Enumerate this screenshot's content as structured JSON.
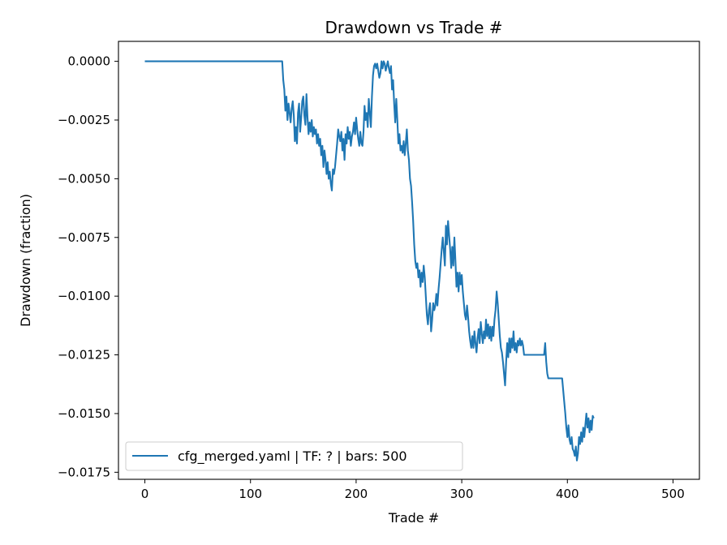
{
  "chart_data": {
    "type": "line",
    "title": "Drawdown vs Trade #",
    "xlabel": "Trade #",
    "ylabel": "Drawdown (fraction)",
    "xlim": [
      -25,
      525
    ],
    "ylim": [
      -0.0178,
      0.00085
    ],
    "xticks": [
      0,
      100,
      200,
      300,
      400,
      500
    ],
    "xtick_labels": [
      "0",
      "100",
      "200",
      "300",
      "400",
      "500"
    ],
    "yticks": [
      0.0,
      -0.0025,
      -0.005,
      -0.0075,
      -0.01,
      -0.0125,
      -0.015,
      -0.0175
    ],
    "ytick_labels": [
      "0.0000",
      "−0.0025",
      "−0.0050",
      "−0.0075",
      "−0.0100",
      "−0.0125",
      "−0.0150",
      "−0.0175"
    ],
    "grid": false,
    "legend_position": "lower-left",
    "series": [
      {
        "name": "cfg_merged.yaml | TF: ? | bars: 500",
        "color": "#1f77b4",
        "points": [
          [
            0,
            0
          ],
          [
            130,
            0
          ],
          [
            131,
            -0.0008
          ],
          [
            132,
            -0.0012
          ],
          [
            133,
            -0.0021
          ],
          [
            134,
            -0.0015
          ],
          [
            135,
            -0.0025
          ],
          [
            136,
            -0.0018
          ],
          [
            137,
            -0.0022
          ],
          [
            138,
            -0.0026
          ],
          [
            139,
            -0.002
          ],
          [
            140,
            -0.0017
          ],
          [
            141,
            -0.0023
          ],
          [
            142,
            -0.0034
          ],
          [
            143,
            -0.0028
          ],
          [
            144,
            -0.0035
          ],
          [
            145,
            -0.0022
          ],
          [
            146,
            -0.0018
          ],
          [
            147,
            -0.003
          ],
          [
            148,
            -0.0024
          ],
          [
            149,
            -0.0017
          ],
          [
            150,
            -0.0015
          ],
          [
            151,
            -0.0023
          ],
          [
            152,
            -0.0027
          ],
          [
            153,
            -0.0014
          ],
          [
            154,
            -0.0024
          ],
          [
            155,
            -0.0031
          ],
          [
            156,
            -0.0026
          ],
          [
            157,
            -0.003
          ],
          [
            158,
            -0.0025
          ],
          [
            159,
            -0.0032
          ],
          [
            160,
            -0.0028
          ],
          [
            161,
            -0.0031
          ],
          [
            162,
            -0.0029
          ],
          [
            163,
            -0.0035
          ],
          [
            164,
            -0.0031
          ],
          [
            165,
            -0.0036
          ],
          [
            166,
            -0.0033
          ],
          [
            167,
            -0.004
          ],
          [
            168,
            -0.0036
          ],
          [
            169,
            -0.0045
          ],
          [
            170,
            -0.0038
          ],
          [
            171,
            -0.0042
          ],
          [
            172,
            -0.0048
          ],
          [
            173,
            -0.0043
          ],
          [
            174,
            -0.005
          ],
          [
            175,
            -0.0047
          ],
          [
            176,
            -0.0052
          ],
          [
            177,
            -0.0055
          ],
          [
            178,
            -0.0046
          ],
          [
            179,
            -0.0048
          ],
          [
            180,
            -0.0045
          ],
          [
            181,
            -0.004
          ],
          [
            182,
            -0.0035
          ],
          [
            183,
            -0.0029
          ],
          [
            184,
            -0.0032
          ],
          [
            185,
            -0.0034
          ],
          [
            186,
            -0.003
          ],
          [
            187,
            -0.0038
          ],
          [
            188,
            -0.0033
          ],
          [
            189,
            -0.0042
          ],
          [
            190,
            -0.0031
          ],
          [
            191,
            -0.0035
          ],
          [
            192,
            -0.0028
          ],
          [
            193,
            -0.0033
          ],
          [
            194,
            -0.003
          ],
          [
            195,
            -0.0036
          ],
          [
            196,
            -0.0032
          ],
          [
            197,
            -0.003
          ],
          [
            198,
            -0.0026
          ],
          [
            199,
            -0.0031
          ],
          [
            200,
            -0.0024
          ],
          [
            201,
            -0.0029
          ],
          [
            202,
            -0.0033
          ],
          [
            203,
            -0.0036
          ],
          [
            204,
            -0.003
          ],
          [
            205,
            -0.0035
          ],
          [
            206,
            -0.0036
          ],
          [
            207,
            -0.003
          ],
          [
            208,
            -0.0019
          ],
          [
            209,
            -0.0025
          ],
          [
            210,
            -0.0022
          ],
          [
            211,
            -0.0028
          ],
          [
            212,
            -0.0016
          ],
          [
            213,
            -0.0022
          ],
          [
            214,
            -0.0028
          ],
          [
            215,
            -0.0015
          ],
          [
            216,
            -0.0006
          ],
          [
            217,
            -0.0002
          ],
          [
            218,
            -0.0001
          ],
          [
            219,
            -0.0003
          ],
          [
            220,
            -0.0001
          ],
          [
            221,
            -0.0004
          ],
          [
            222,
            -0.0007
          ],
          [
            223,
            -0.0005
          ],
          [
            224,
            0
          ],
          [
            225,
            -0.0003
          ],
          [
            226,
            0
          ],
          [
            227,
            -0.0001
          ],
          [
            228,
            -0.0004
          ],
          [
            229,
            -0.0002
          ],
          [
            230,
            0
          ],
          [
            231,
            -0.0003
          ],
          [
            232,
            -0.0005
          ],
          [
            233,
            -0.0002
          ],
          [
            234,
            -0.0012
          ],
          [
            235,
            -0.0008
          ],
          [
            236,
            -0.0018
          ],
          [
            237,
            -0.0026
          ],
          [
            238,
            -0.0016
          ],
          [
            239,
            -0.0025
          ],
          [
            240,
            -0.0035
          ],
          [
            241,
            -0.0031
          ],
          [
            242,
            -0.0038
          ],
          [
            243,
            -0.0036
          ],
          [
            244,
            -0.0039
          ],
          [
            245,
            -0.0034
          ],
          [
            246,
            -0.004
          ],
          [
            247,
            -0.0035
          ],
          [
            248,
            -0.0029
          ],
          [
            249,
            -0.0038
          ],
          [
            250,
            -0.0042
          ],
          [
            251,
            -0.005
          ],
          [
            252,
            -0.0053
          ],
          [
            253,
            -0.006
          ],
          [
            254,
            -0.0068
          ],
          [
            255,
            -0.0078
          ],
          [
            256,
            -0.0085
          ],
          [
            257,
            -0.0088
          ],
          [
            258,
            -0.0086
          ],
          [
            259,
            -0.0092
          ],
          [
            260,
            -0.0089
          ],
          [
            261,
            -0.0096
          ],
          [
            262,
            -0.009
          ],
          [
            263,
            -0.0094
          ],
          [
            264,
            -0.0087
          ],
          [
            265,
            -0.0092
          ],
          [
            266,
            -0.01
          ],
          [
            267,
            -0.0108
          ],
          [
            268,
            -0.0112
          ],
          [
            269,
            -0.0106
          ],
          [
            270,
            -0.0103
          ],
          [
            271,
            -0.0115
          ],
          [
            272,
            -0.011
          ],
          [
            273,
            -0.0103
          ],
          [
            274,
            -0.0106
          ],
          [
            275,
            -0.0104
          ],
          [
            276,
            -0.0099
          ],
          [
            277,
            -0.0104
          ],
          [
            278,
            -0.0097
          ],
          [
            279,
            -0.0092
          ],
          [
            280,
            -0.0086
          ],
          [
            281,
            -0.008
          ],
          [
            282,
            -0.0075
          ],
          [
            283,
            -0.0081
          ],
          [
            284,
            -0.0087
          ],
          [
            285,
            -0.007
          ],
          [
            286,
            -0.0078
          ],
          [
            287,
            -0.0068
          ],
          [
            288,
            -0.0074
          ],
          [
            289,
            -0.008
          ],
          [
            290,
            -0.0088
          ],
          [
            291,
            -0.0079
          ],
          [
            292,
            -0.0087
          ],
          [
            293,
            -0.0075
          ],
          [
            294,
            -0.0085
          ],
          [
            295,
            -0.0096
          ],
          [
            296,
            -0.009
          ],
          [
            297,
            -0.0098
          ],
          [
            298,
            -0.009
          ],
          [
            299,
            -0.0095
          ],
          [
            300,
            -0.0091
          ],
          [
            301,
            -0.0098
          ],
          [
            302,
            -0.0103
          ],
          [
            303,
            -0.0108
          ],
          [
            304,
            -0.011
          ],
          [
            305,
            -0.0104
          ],
          [
            306,
            -0.0109
          ],
          [
            307,
            -0.0115
          ],
          [
            308,
            -0.0119
          ],
          [
            309,
            -0.0122
          ],
          [
            310,
            -0.0117
          ],
          [
            311,
            -0.0122
          ],
          [
            312,
            -0.0115
          ],
          [
            313,
            -0.012
          ],
          [
            314,
            -0.0124
          ],
          [
            315,
            -0.0118
          ],
          [
            316,
            -0.0114
          ],
          [
            317,
            -0.012
          ],
          [
            318,
            -0.0111
          ],
          [
            319,
            -0.0116
          ],
          [
            320,
            -0.012
          ],
          [
            321,
            -0.0115
          ],
          [
            322,
            -0.0118
          ],
          [
            323,
            -0.011
          ],
          [
            324,
            -0.0117
          ],
          [
            325,
            -0.0112
          ],
          [
            326,
            -0.0118
          ],
          [
            327,
            -0.0113
          ],
          [
            328,
            -0.0119
          ],
          [
            329,
            -0.0113
          ],
          [
            330,
            -0.0117
          ],
          [
            331,
            -0.011
          ],
          [
            332,
            -0.0106
          ],
          [
            333,
            -0.0098
          ],
          [
            334,
            -0.0103
          ],
          [
            335,
            -0.011
          ],
          [
            336,
            -0.0117
          ],
          [
            337,
            -0.0122
          ],
          [
            338,
            -0.0124
          ],
          [
            339,
            -0.0128
          ],
          [
            340,
            -0.0133
          ],
          [
            341,
            -0.0138
          ],
          [
            342,
            -0.0128
          ],
          [
            343,
            -0.012
          ],
          [
            344,
            -0.0126
          ],
          [
            345,
            -0.0118
          ],
          [
            346,
            -0.0124
          ],
          [
            347,
            -0.0118
          ],
          [
            348,
            -0.0122
          ],
          [
            349,
            -0.0115
          ],
          [
            350,
            -0.0123
          ],
          [
            351,
            -0.012
          ],
          [
            352,
            -0.0124
          ],
          [
            353,
            -0.0119
          ],
          [
            354,
            -0.0121
          ],
          [
            355,
            -0.0118
          ],
          [
            356,
            -0.0121
          ],
          [
            357,
            -0.0119
          ],
          [
            358,
            -0.0121
          ],
          [
            359,
            -0.0125
          ],
          [
            360,
            -0.0125
          ],
          [
            378,
            -0.0125
          ],
          [
            379,
            -0.012
          ],
          [
            380,
            -0.0128
          ],
          [
            381,
            -0.0133
          ],
          [
            382,
            -0.0135
          ],
          [
            383,
            -0.0135
          ],
          [
            395,
            -0.0135
          ],
          [
            396,
            -0.014
          ],
          [
            397,
            -0.0145
          ],
          [
            398,
            -0.015
          ],
          [
            399,
            -0.0156
          ],
          [
            400,
            -0.016
          ],
          [
            401,
            -0.0155
          ],
          [
            402,
            -0.0161
          ],
          [
            403,
            -0.0163
          ],
          [
            404,
            -0.016
          ],
          [
            405,
            -0.0165
          ],
          [
            406,
            -0.0166
          ],
          [
            407,
            -0.0168
          ],
          [
            408,
            -0.0164
          ],
          [
            409,
            -0.017
          ],
          [
            410,
            -0.0167
          ],
          [
            411,
            -0.016
          ],
          [
            412,
            -0.0163
          ],
          [
            413,
            -0.0158
          ],
          [
            414,
            -0.0162
          ],
          [
            415,
            -0.0156
          ],
          [
            416,
            -0.016
          ],
          [
            417,
            -0.0155
          ],
          [
            418,
            -0.015
          ],
          [
            419,
            -0.0156
          ],
          [
            420,
            -0.0152
          ],
          [
            421,
            -0.0158
          ],
          [
            422,
            -0.0153
          ],
          [
            423,
            -0.0157
          ],
          [
            424,
            -0.0151
          ],
          [
            425,
            -0.0152
          ]
        ]
      }
    ]
  }
}
